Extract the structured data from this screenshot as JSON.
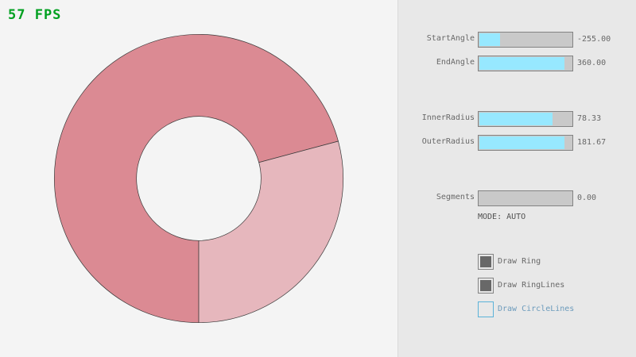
{
  "fps": "57 FPS",
  "ring": {
    "start_angle": -255,
    "end_angle": 360,
    "inner_radius": 78.33,
    "outer_radius": 181.67,
    "colors": {
      "single": "#e6b7bd",
      "overlap": "#db8a93",
      "outline": "#3a3a3a"
    }
  },
  "controls": {
    "sliders": [
      {
        "label": "StartAngle",
        "value": "-255.00",
        "fill": 0.22
      },
      {
        "label": "EndAngle",
        "value": "360.00",
        "fill": 0.91
      },
      {
        "label": "InnerRadius",
        "value": "78.33",
        "fill": 0.78
      },
      {
        "label": "OuterRadius",
        "value": "181.67",
        "fill": 0.91
      },
      {
        "label": "Segments",
        "value": "0.00",
        "fill": 0
      }
    ],
    "mode": "MODE: AUTO",
    "checkboxes": [
      {
        "label": "Draw Ring",
        "checked": true
      },
      {
        "label": "Draw RingLines",
        "checked": true
      },
      {
        "label": "Draw CircleLines",
        "checked": false
      }
    ]
  },
  "accent": "#97e8ff"
}
